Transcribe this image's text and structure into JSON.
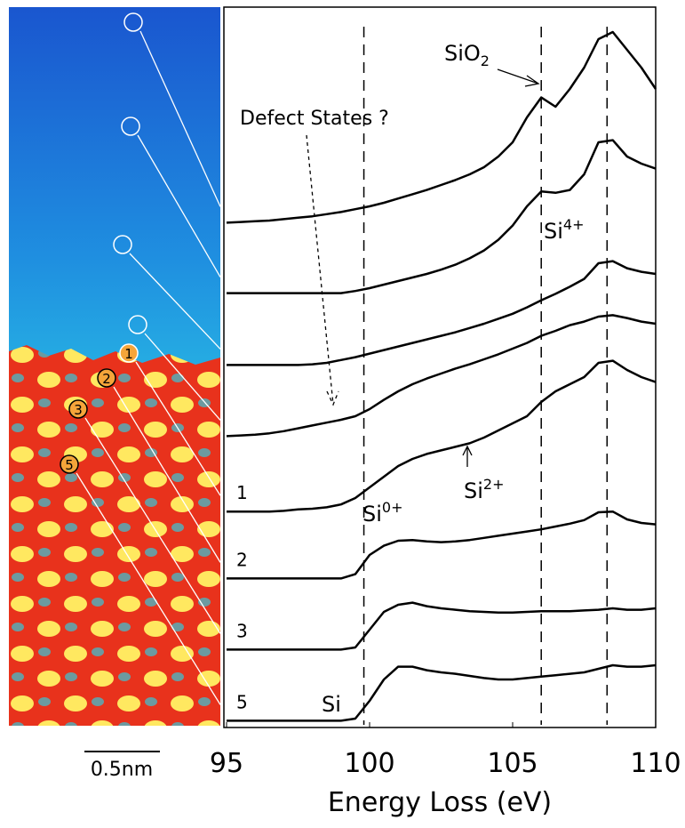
{
  "chart_data": {
    "type": "line",
    "xlabel": "Energy Loss (eV)",
    "xlim": [
      95,
      110
    ],
    "xticks": [
      95,
      100,
      105,
      110
    ],
    "ylim": [
      0,
      100
    ],
    "x": [
      95,
      95.5,
      96,
      96.5,
      97,
      97.5,
      98,
      98.5,
      99,
      99.5,
      100,
      100.5,
      101,
      101.5,
      102,
      102.5,
      103,
      103.5,
      104,
      104.5,
      105,
      105.5,
      106,
      106.5,
      107,
      107.5,
      108,
      108.5,
      109,
      109.5,
      110
    ],
    "series": [
      {
        "color": "#000000",
        "values": [
          71.2,
          71.3,
          71.4,
          71.5,
          71.7,
          71.9,
          72.1,
          72.4,
          72.7,
          73.1,
          73.5,
          74,
          74.6,
          75.2,
          75.8,
          76.5,
          77.2,
          78,
          79,
          80.5,
          82.5,
          86,
          88.8,
          87.5,
          90,
          93,
          97,
          98,
          95.5,
          93,
          90
        ]
      },
      {
        "color": "#000000",
        "values": [
          61.3,
          61.3,
          61.3,
          61.3,
          61.3,
          61.3,
          61.3,
          61.3,
          61.3,
          61.6,
          62,
          62.5,
          63,
          63.5,
          64,
          64.6,
          65.3,
          66.2,
          67.3,
          68.8,
          70.8,
          73.5,
          75.6,
          75.4,
          75.8,
          78,
          82.5,
          82.8,
          80.5,
          79.5,
          78.8
        ]
      },
      {
        "color": "#000000",
        "values": [
          51.2,
          51.2,
          51.2,
          51.2,
          51.2,
          51.2,
          51.3,
          51.5,
          51.9,
          52.3,
          52.8,
          53.3,
          53.8,
          54.3,
          54.8,
          55.3,
          55.8,
          56.4,
          57,
          57.7,
          58.4,
          59.3,
          60.3,
          61.2,
          62.2,
          63.3,
          65.5,
          65.8,
          64.8,
          64.3,
          64
        ]
      },
      {
        "color": "#000000",
        "values": [
          41.2,
          41.3,
          41.4,
          41.6,
          41.9,
          42.3,
          42.7,
          43.1,
          43.5,
          44,
          45,
          46.3,
          47.5,
          48.5,
          49.3,
          50,
          50.7,
          51.3,
          52,
          52.7,
          53.5,
          54.3,
          55.3,
          56,
          56.8,
          57.3,
          58,
          58.2,
          57.8,
          57.3,
          57
        ]
      },
      {
        "name": "1",
        "color": "#000000",
        "values": [
          30.6,
          30.6,
          30.6,
          30.6,
          30.7,
          30.9,
          31,
          31.2,
          31.6,
          32.5,
          34,
          35.5,
          37,
          38,
          38.7,
          39.2,
          39.7,
          40.2,
          41,
          42,
          43,
          44,
          46,
          47.5,
          48.5,
          49.5,
          51.5,
          51.8,
          50.5,
          49.5,
          48.8
        ]
      },
      {
        "name": "2",
        "color": "#000000",
        "values": [
          21.2,
          21.2,
          21.2,
          21.2,
          21.2,
          21.2,
          21.2,
          21.2,
          21.2,
          21.8,
          24.5,
          25.8,
          26.5,
          26.6,
          26.4,
          26.3,
          26.4,
          26.6,
          26.9,
          27.2,
          27.5,
          27.8,
          28.1,
          28.5,
          28.9,
          29.4,
          30.5,
          30.6,
          29.5,
          29,
          28.8
        ]
      },
      {
        "name": "3",
        "color": "#000000",
        "values": [
          11.2,
          11.2,
          11.2,
          11.2,
          11.2,
          11.2,
          11.2,
          11.2,
          11.2,
          11.5,
          14,
          16.5,
          17.5,
          17.8,
          17.3,
          17,
          16.8,
          16.6,
          16.5,
          16.4,
          16.4,
          16.5,
          16.6,
          16.6,
          16.6,
          16.7,
          16.8,
          17,
          16.8,
          16.8,
          17
        ]
      },
      {
        "name": "5",
        "color": "#000000",
        "values": [
          1.2,
          1.2,
          1.2,
          1.2,
          1.2,
          1.2,
          1.2,
          1.2,
          1.2,
          1.5,
          4,
          7,
          8.8,
          8.8,
          8.3,
          8,
          7.8,
          7.5,
          7.2,
          7,
          7,
          7.2,
          7.4,
          7.6,
          7.8,
          8,
          8.5,
          9,
          8.8,
          8.8,
          9
        ]
      }
    ],
    "vlines": [
      99.8,
      106,
      108.3
    ],
    "annotations": [
      {
        "text": "Defect States ?"
      },
      {
        "text": "SiO",
        "sub": "2"
      },
      {
        "text": "Si",
        "sup": "4+"
      },
      {
        "text": "Si",
        "sup": "2+"
      },
      {
        "text": "Si",
        "sup": "0+"
      },
      {
        "text": "Si"
      }
    ]
  },
  "image": {
    "markers": [
      "1",
      "2",
      "3",
      "5"
    ],
    "scale_bar": "0.5nm"
  }
}
